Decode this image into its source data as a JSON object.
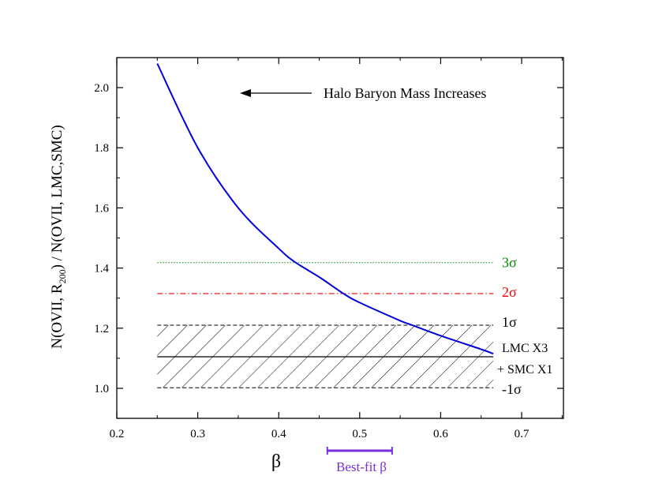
{
  "chart_data": {
    "type": "line",
    "xlabel": "β",
    "ylabel": "N(OVII, R200) / N(OVII, LMC,SMC)",
    "ylabel_parts": {
      "main": "N(OVII, R",
      "sub": "200",
      "rest": ") / N(OVII, LMC,SMC)"
    },
    "xlim": [
      0.2,
      0.75
    ],
    "ylim": [
      0.9,
      2.1
    ],
    "x_ticks": [
      0.2,
      0.3,
      0.4,
      0.5,
      0.6,
      0.7
    ],
    "x_tick_labels": [
      "0.2",
      "0.3",
      "0.4",
      "0.5",
      "0.6",
      "0.7"
    ],
    "y_ticks": [
      1.0,
      1.2,
      1.4,
      1.6,
      1.8,
      2.0
    ],
    "y_tick_labels": [
      "1.0",
      "1.2",
      "1.4",
      "1.6",
      "1.8",
      "2.0"
    ],
    "grid": false,
    "series": [
      {
        "color": "#0000dd",
        "x": [
          0.25,
          0.3,
          0.35,
          0.4,
          0.42,
          0.45,
          0.48,
          0.5,
          0.55,
          0.565,
          0.6,
          0.65,
          0.665
        ],
        "y": [
          2.08,
          1.8,
          1.6,
          1.465,
          1.42,
          1.37,
          1.315,
          1.285,
          1.225,
          1.21,
          1.175,
          1.13,
          1.115
        ]
      }
    ],
    "reference_lines": [
      {
        "y": 1.418,
        "x_range": [
          0.25,
          0.665
        ],
        "style": "dotted",
        "color": "#008800",
        "label": "3σ",
        "label_color": "#008800"
      },
      {
        "y": 1.315,
        "x_range": [
          0.25,
          0.665
        ],
        "style": "dashdot",
        "color": "#ee0000",
        "label": "2σ",
        "label_color": "#ee0000"
      },
      {
        "y": 1.21,
        "x_range": [
          0.25,
          0.665
        ],
        "style": "dashed",
        "color": "#000000",
        "label": "1σ",
        "label_color": "#000000"
      },
      {
        "y": 1.105,
        "x_range": [
          0.25,
          0.665
        ],
        "style": "solid",
        "color": "#000000",
        "label": "",
        "label_color": "#000000"
      },
      {
        "y": 1.002,
        "x_range": [
          0.25,
          0.665
        ],
        "style": "dashed",
        "color": "#000000",
        "label": "-1σ",
        "label_color": "#000000"
      }
    ],
    "hatched_band": {
      "y_range": [
        1.002,
        1.21
      ],
      "x_range": [
        0.25,
        0.665
      ]
    },
    "annotations": [
      {
        "text": "Halo Baryon Mass Increases",
        "arrow": "left"
      },
      {
        "text": "LMC X3"
      },
      {
        "text": "+ SMC X1"
      }
    ],
    "best_fit": {
      "label": "Best-fit β",
      "x_range": [
        0.46,
        0.54
      ],
      "color": "#7b2fd9"
    }
  }
}
